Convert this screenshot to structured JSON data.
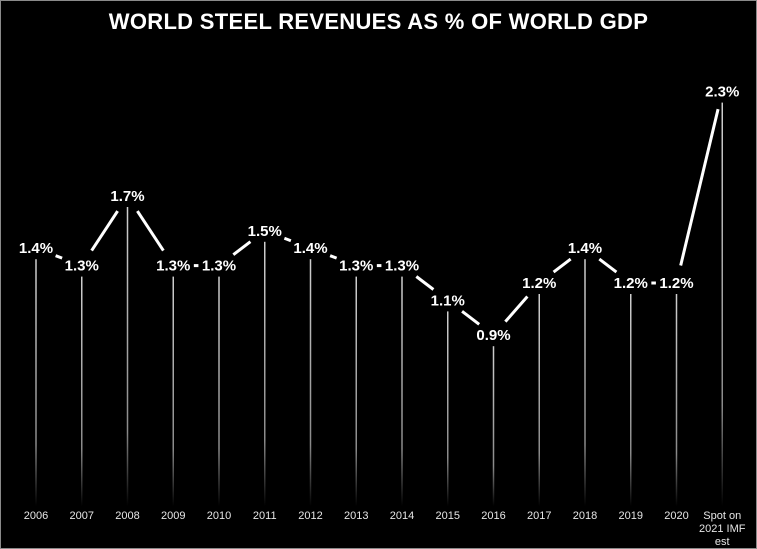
{
  "chart_data": {
    "type": "line",
    "title": "WORLD STEEL REVENUES AS % OF WORLD GDP",
    "xlabel": "",
    "ylabel": "",
    "categories": [
      "2006",
      "2007",
      "2008",
      "2009",
      "2010",
      "2011",
      "2012",
      "2013",
      "2014",
      "2015",
      "2016",
      "2017",
      "2018",
      "2019",
      "2020",
      "Spot on 2021 IMF est"
    ],
    "category_lines": [
      [
        "2006"
      ],
      [
        "2007"
      ],
      [
        "2008"
      ],
      [
        "2009"
      ],
      [
        "2010"
      ],
      [
        "2011"
      ],
      [
        "2012"
      ],
      [
        "2013"
      ],
      [
        "2014"
      ],
      [
        "2015"
      ],
      [
        "2016"
      ],
      [
        "2017"
      ],
      [
        "2018"
      ],
      [
        "2019"
      ],
      [
        "2020"
      ],
      [
        "Spot on",
        "2021 IMF",
        "est"
      ]
    ],
    "values": [
      1.4,
      1.3,
      1.7,
      1.3,
      1.3,
      1.5,
      1.4,
      1.3,
      1.3,
      1.1,
      0.9,
      1.2,
      1.4,
      1.2,
      1.2,
      2.3
    ],
    "data_labels": [
      "1.4%",
      "1.3%",
      "1.7%",
      "1.3%",
      "1.3%",
      "1.5%",
      "1.4%",
      "1.3%",
      "1.3%",
      "1.1%",
      "0.9%",
      "1.2%",
      "1.4%",
      "1.2%",
      "1.2%",
      "2.3%"
    ],
    "grid": false,
    "legend": "none",
    "colors": {
      "background": "#000000",
      "line": "#ffffff",
      "text": "#ffffff"
    }
  }
}
